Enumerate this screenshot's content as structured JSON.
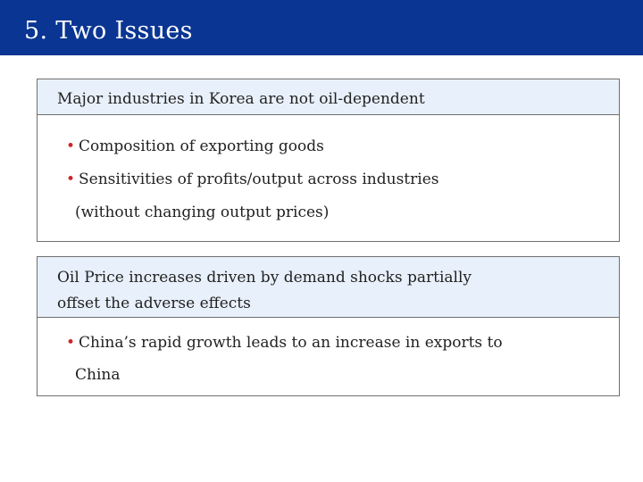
{
  "slide": {
    "title": "5. Two Issues"
  },
  "issue1": {
    "heading": "Major industries in Korea are not oil-dependent",
    "bullets": [
      {
        "text": "Composition of exporting goods"
      },
      {
        "text": "Sensitivities of profits/output across industries",
        "continuation": "(without changing output prices)"
      }
    ]
  },
  "issue2": {
    "heading_lines": [
      "Oil Price increases driven by demand shocks partially",
      "offset the adverse effects"
    ],
    "bullets": [
      {
        "text": "China’s rapid growth leads to an increase in exports to",
        "continuation": "China"
      }
    ]
  },
  "colors": {
    "title_bar": "#0a3593",
    "box_header": "#e8f0fb",
    "bullet": "#d0242b"
  }
}
